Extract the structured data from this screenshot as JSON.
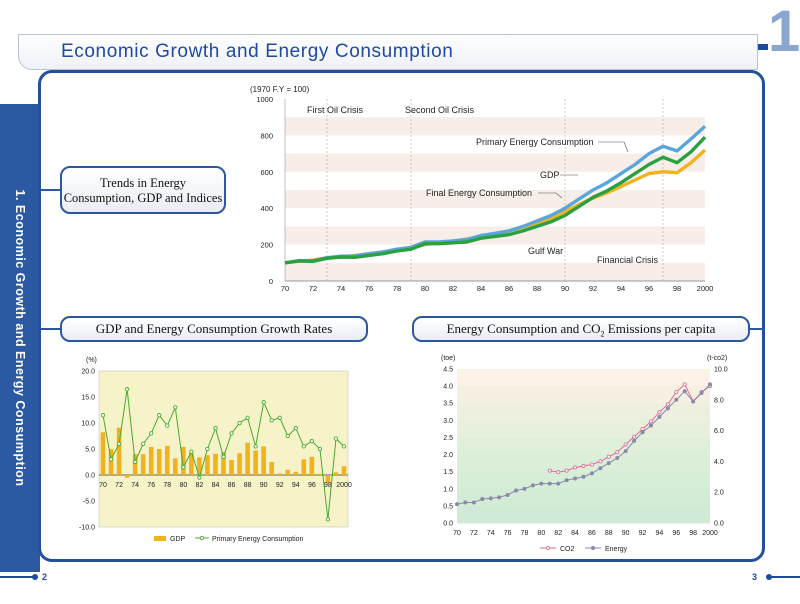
{
  "page": {
    "title": "Economic Growth  and Energy Consumption",
    "chapter_number": "1",
    "side_label": "1. Economic Growth and Energy Consumption",
    "page_left": "2",
    "page_right": "3"
  },
  "labels": {
    "trends": [
      "Trends in Energy",
      "Consumption, GDP and Indices"
    ],
    "growth": "GDP and Energy Consumption Growth Rates",
    "co2_prefix": "Energy Consumption and CO",
    "co2_sub": "2",
    "co2_suffix": " Emissions per capita"
  },
  "chart_data": [
    {
      "type": "line",
      "title": "Trends in Energy Consumption, GDP and Indices",
      "ylabel": "(1970 F.Y = 100)",
      "ylim": [
        0,
        1000
      ],
      "yticks": [
        0,
        200,
        400,
        600,
        800,
        1000
      ],
      "xticks": [
        "70",
        "72",
        "74",
        "76",
        "78",
        "80",
        "82",
        "84",
        "86",
        "88",
        "90",
        "92",
        "94",
        "96",
        "98",
        "2000"
      ],
      "x": [
        70,
        71,
        72,
        73,
        74,
        75,
        76,
        77,
        78,
        79,
        80,
        81,
        82,
        83,
        84,
        85,
        86,
        87,
        88,
        89,
        90,
        91,
        92,
        93,
        94,
        95,
        96,
        97,
        98,
        99,
        100
      ],
      "series": [
        {
          "name": "GDP",
          "color": "#f0b21e",
          "values": [
            100,
            108,
            115,
            128,
            132,
            140,
            150,
            160,
            170,
            180,
            200,
            210,
            220,
            230,
            245,
            260,
            275,
            295,
            318,
            345,
            380,
            420,
            455,
            485,
            520,
            555,
            590,
            600,
            595,
            650,
            720
          ]
        },
        {
          "name": "Primary Energy Consumption",
          "color": "#5aa6dc",
          "values": [
            100,
            112,
            110,
            128,
            136,
            138,
            150,
            160,
            175,
            185,
            215,
            215,
            220,
            228,
            250,
            262,
            275,
            300,
            330,
            360,
            400,
            450,
            500,
            540,
            590,
            640,
            700,
            740,
            715,
            780,
            850
          ]
        },
        {
          "name": "Final Energy Consumption",
          "color": "#2aa040",
          "values": [
            100,
            110,
            108,
            125,
            132,
            130,
            140,
            150,
            165,
            175,
            205,
            205,
            210,
            215,
            235,
            245,
            255,
            275,
            300,
            325,
            360,
            410,
            460,
            495,
            540,
            590,
            640,
            680,
            650,
            710,
            790
          ]
        }
      ],
      "annotations": [
        "First Oil Crisis",
        "Second Oil Crisis",
        "Gulf War",
        "Financial Crisis",
        "Primary Energy Consumption",
        "GDP",
        "Final Energy Consumption"
      ],
      "event_years": [
        73,
        79,
        90,
        97
      ]
    },
    {
      "type": "bar",
      "title": "GDP and Energy Consumption Growth Rates",
      "ylabel": "(%)",
      "ylim": [
        -10,
        20
      ],
      "yticks": [
        "20.0",
        "15.0",
        "10.0",
        "5.0",
        "0.0",
        "-5.0",
        "-10.0"
      ],
      "xticks": [
        "70",
        "72",
        "74",
        "76",
        "78",
        "80",
        "82",
        "84",
        "86",
        "88",
        "90",
        "92",
        "94",
        "96",
        "98",
        "2000"
      ],
      "series": [
        {
          "name": "GDP",
          "kind": "bar",
          "color": "#f0b21e",
          "values": [
            8.2,
            5.0,
            9.1,
            -0.5,
            4.0,
            4.0,
            5.4,
            5.0,
            5.6,
            3.2,
            5.4,
            4.2,
            3.4,
            3.8,
            4.1,
            4.4,
            2.9,
            4.2,
            6.2,
            4.7,
            5.5,
            2.5,
            0.3,
            1.0,
            0.6,
            3.0,
            3.5,
            0.2,
            -1.5,
            0.5,
            1.7
          ]
        },
        {
          "name": "Primary Energy Consumption",
          "kind": "line",
          "color": "#4aa832",
          "values": [
            11.5,
            3.0,
            6.0,
            16.5,
            2.5,
            6.0,
            8.0,
            11.5,
            9.5,
            13.0,
            1.5,
            4.5,
            -0.5,
            5.0,
            9.0,
            3.5,
            8.0,
            10.0,
            11.0,
            5.5,
            14.0,
            10.5,
            11.0,
            7.5,
            9.0,
            5.5,
            6.5,
            5.0,
            -8.5,
            7.0,
            5.5
          ]
        }
      ]
    },
    {
      "type": "line",
      "title": "Energy Consumption and CO2 Emissions per capita",
      "ylabel_left": "(toe)",
      "ylabel_right": "(t-co2)",
      "ylim_left": [
        0,
        4.5
      ],
      "ylim_right": [
        0,
        10
      ],
      "yticks_left": [
        "0.0",
        "0.5",
        "1.0",
        "1.5",
        "2.0",
        "2.5",
        "3.0",
        "3.5",
        "4.0",
        "4.5"
      ],
      "yticks_right": [
        "0.0",
        "2.0",
        "4.0",
        "6.0",
        "8.0",
        "10.0"
      ],
      "xticks": [
        "70",
        "72",
        "74",
        "76",
        "78",
        "80",
        "82",
        "84",
        "86",
        "88",
        "90",
        "92",
        "94",
        "96",
        "98",
        "2000"
      ],
      "series": [
        {
          "name": "CO2",
          "axis": "right",
          "color": "#e06a9a",
          "x": [
            81,
            82,
            83,
            84,
            85,
            86,
            87,
            88,
            89,
            90,
            91,
            92,
            93,
            94,
            95,
            96,
            97,
            98,
            99,
            100
          ],
          "values": [
            3.4,
            3.3,
            3.4,
            3.6,
            3.7,
            3.8,
            4.0,
            4.3,
            4.6,
            5.1,
            5.6,
            6.1,
            6.6,
            7.2,
            7.7,
            8.5,
            9.0,
            7.9,
            8.5,
            8.9
          ]
        },
        {
          "name": "Energy",
          "axis": "left",
          "color": "#8a8aa8",
          "x": [
            70,
            71,
            72,
            73,
            74,
            75,
            76,
            77,
            78,
            79,
            80,
            81,
            82,
            83,
            84,
            85,
            86,
            87,
            88,
            89,
            90,
            91,
            92,
            93,
            94,
            95,
            96,
            97,
            98,
            99,
            100
          ],
          "values": [
            0.55,
            0.6,
            0.6,
            0.7,
            0.72,
            0.75,
            0.82,
            0.95,
            1.0,
            1.1,
            1.15,
            1.15,
            1.15,
            1.25,
            1.3,
            1.35,
            1.45,
            1.6,
            1.75,
            1.9,
            2.1,
            2.4,
            2.65,
            2.85,
            3.1,
            3.35,
            3.6,
            3.85,
            3.55,
            3.8,
            4.05
          ]
        }
      ],
      "legend": [
        "CO2",
        "Energy"
      ]
    }
  ]
}
